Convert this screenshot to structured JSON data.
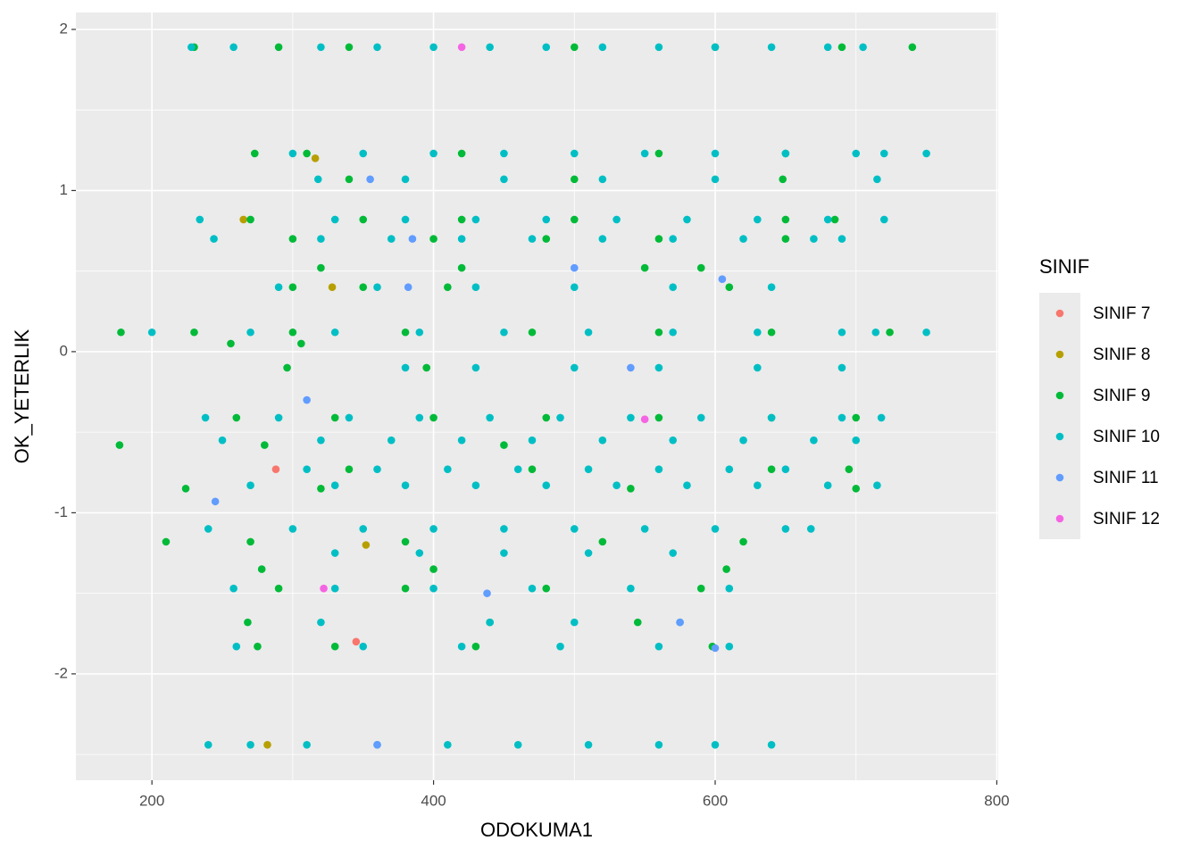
{
  "chart_data": {
    "type": "scatter",
    "x_label": "ODOKUMA1",
    "y_label": "OK_YETERLIK",
    "legend_title": "SINIF",
    "legend_position": "right",
    "xlim": [
      146,
      801
    ],
    "ylim": [
      -2.66,
      2.105
    ],
    "xticks": [
      200,
      400,
      600,
      800
    ],
    "yticks": [
      -2,
      -1,
      0,
      1,
      2
    ],
    "grid": true,
    "minor_grid": true,
    "series": [
      {
        "name": "SINIF 7",
        "color": "#F8766D",
        "x": [
          288,
          345
        ],
        "values": [
          -0.73,
          -1.8
        ]
      },
      {
        "name": "SINIF 8",
        "color": "#B79F00",
        "x": [
          265,
          328,
          352,
          282,
          316
        ],
        "values": [
          0.82,
          0.4,
          -1.2,
          -2.44,
          1.2
        ]
      },
      {
        "name": "SINIF 9",
        "color": "#00BA38",
        "x": [
          230,
          290,
          340,
          500,
          600,
          690,
          740,
          273,
          310,
          420,
          560,
          650,
          340,
          500,
          648,
          270,
          350,
          420,
          500,
          650,
          685,
          300,
          400,
          480,
          560,
          650,
          320,
          420,
          550,
          590,
          300,
          350,
          410,
          610,
          178,
          230,
          300,
          380,
          470,
          560,
          640,
          724,
          256,
          306,
          296,
          395,
          260,
          330,
          400,
          480,
          560,
          640,
          700,
          177,
          280,
          450,
          340,
          470,
          640,
          695,
          224,
          320,
          540,
          700,
          210,
          270,
          380,
          520,
          620,
          278,
          400,
          608,
          290,
          380,
          480,
          590,
          268,
          440,
          545,
          275,
          330,
          430,
          598
        ],
        "values": [
          1.89,
          1.89,
          1.89,
          1.89,
          1.89,
          1.89,
          1.89,
          1.23,
          1.23,
          1.23,
          1.23,
          1.23,
          1.07,
          1.07,
          1.07,
          0.82,
          0.82,
          0.82,
          0.82,
          0.82,
          0.82,
          0.7,
          0.7,
          0.7,
          0.7,
          0.7,
          0.52,
          0.52,
          0.52,
          0.52,
          0.4,
          0.4,
          0.4,
          0.4,
          0.12,
          0.12,
          0.12,
          0.12,
          0.12,
          0.12,
          0.12,
          0.12,
          0.05,
          0.05,
          -0.1,
          -0.1,
          -0.41,
          -0.41,
          -0.41,
          -0.41,
          -0.41,
          -0.41,
          -0.41,
          -0.58,
          -0.58,
          -0.58,
          -0.73,
          -0.73,
          -0.73,
          -0.73,
          -0.85,
          -0.85,
          -0.85,
          -0.85,
          -1.18,
          -1.18,
          -1.18,
          -1.18,
          -1.18,
          -1.35,
          -1.35,
          -1.35,
          -1.47,
          -1.47,
          -1.47,
          -1.47,
          -1.68,
          -1.68,
          -1.68,
          -1.83,
          -1.83,
          -1.83,
          -1.83
        ]
      },
      {
        "name": "SINIF 10",
        "color": "#00BFC4",
        "x": [
          228,
          258,
          320,
          360,
          400,
          440,
          480,
          520,
          560,
          600,
          640,
          680,
          705,
          300,
          350,
          400,
          450,
          500,
          550,
          600,
          650,
          700,
          720,
          750,
          318,
          380,
          450,
          520,
          600,
          715,
          234,
          330,
          380,
          430,
          480,
          530,
          580,
          630,
          680,
          720,
          244,
          320,
          370,
          420,
          470,
          520,
          570,
          620,
          670,
          690,
          290,
          360,
          430,
          500,
          570,
          640,
          200,
          270,
          330,
          390,
          450,
          510,
          570,
          630,
          690,
          714,
          750,
          380,
          430,
          500,
          560,
          630,
          690,
          238,
          290,
          340,
          390,
          440,
          490,
          540,
          590,
          640,
          690,
          718,
          250,
          320,
          370,
          420,
          470,
          520,
          570,
          620,
          670,
          700,
          310,
          360,
          410,
          460,
          510,
          560,
          610,
          650,
          270,
          330,
          380,
          430,
          480,
          530,
          580,
          630,
          680,
          715,
          240,
          300,
          350,
          400,
          450,
          500,
          550,
          600,
          650,
          668,
          330,
          390,
          450,
          510,
          570,
          258,
          330,
          400,
          470,
          540,
          610,
          320,
          440,
          500,
          575,
          260,
          350,
          420,
          490,
          560,
          610,
          240,
          270,
          310,
          360,
          410,
          460,
          510,
          560,
          600,
          640
        ],
        "values": [
          1.89,
          1.89,
          1.89,
          1.89,
          1.89,
          1.89,
          1.89,
          1.89,
          1.89,
          1.89,
          1.89,
          1.89,
          1.89,
          1.23,
          1.23,
          1.23,
          1.23,
          1.23,
          1.23,
          1.23,
          1.23,
          1.23,
          1.23,
          1.23,
          1.07,
          1.07,
          1.07,
          1.07,
          1.07,
          1.07,
          0.82,
          0.82,
          0.82,
          0.82,
          0.82,
          0.82,
          0.82,
          0.82,
          0.82,
          0.82,
          0.7,
          0.7,
          0.7,
          0.7,
          0.7,
          0.7,
          0.7,
          0.7,
          0.7,
          0.7,
          0.4,
          0.4,
          0.4,
          0.4,
          0.4,
          0.4,
          0.12,
          0.12,
          0.12,
          0.12,
          0.12,
          0.12,
          0.12,
          0.12,
          0.12,
          0.12,
          0.12,
          -0.1,
          -0.1,
          -0.1,
          -0.1,
          -0.1,
          -0.1,
          -0.41,
          -0.41,
          -0.41,
          -0.41,
          -0.41,
          -0.41,
          -0.41,
          -0.41,
          -0.41,
          -0.41,
          -0.41,
          -0.55,
          -0.55,
          -0.55,
          -0.55,
          -0.55,
          -0.55,
          -0.55,
          -0.55,
          -0.55,
          -0.55,
          -0.73,
          -0.73,
          -0.73,
          -0.73,
          -0.73,
          -0.73,
          -0.73,
          -0.73,
          -0.83,
          -0.83,
          -0.83,
          -0.83,
          -0.83,
          -0.83,
          -0.83,
          -0.83,
          -0.83,
          -0.83,
          -1.1,
          -1.1,
          -1.1,
          -1.1,
          -1.1,
          -1.1,
          -1.1,
          -1.1,
          -1.1,
          -1.1,
          -1.25,
          -1.25,
          -1.25,
          -1.25,
          -1.25,
          -1.47,
          -1.47,
          -1.47,
          -1.47,
          -1.47,
          -1.47,
          -1.68,
          -1.68,
          -1.68,
          -1.68,
          -1.83,
          -1.83,
          -1.83,
          -1.83,
          -1.83,
          -1.83,
          -2.44,
          -2.44,
          -2.44,
          -2.44,
          -2.44,
          -2.44,
          -2.44,
          -2.44,
          -2.44,
          -2.44
        ]
      },
      {
        "name": "SINIF 11",
        "color": "#619CFF",
        "x": [
          355,
          385,
          382,
          310,
          245,
          500,
          605,
          575,
          600,
          438,
          540,
          360
        ],
        "values": [
          1.07,
          0.7,
          0.4,
          -0.3,
          -0.93,
          0.52,
          0.45,
          -1.68,
          -1.84,
          -1.5,
          -0.1,
          -2.44
        ]
      },
      {
        "name": "SINIF 12",
        "color": "#F564E3",
        "x": [
          420,
          322,
          550
        ],
        "values": [
          1.89,
          -1.47,
          -0.42
        ]
      }
    ]
  }
}
